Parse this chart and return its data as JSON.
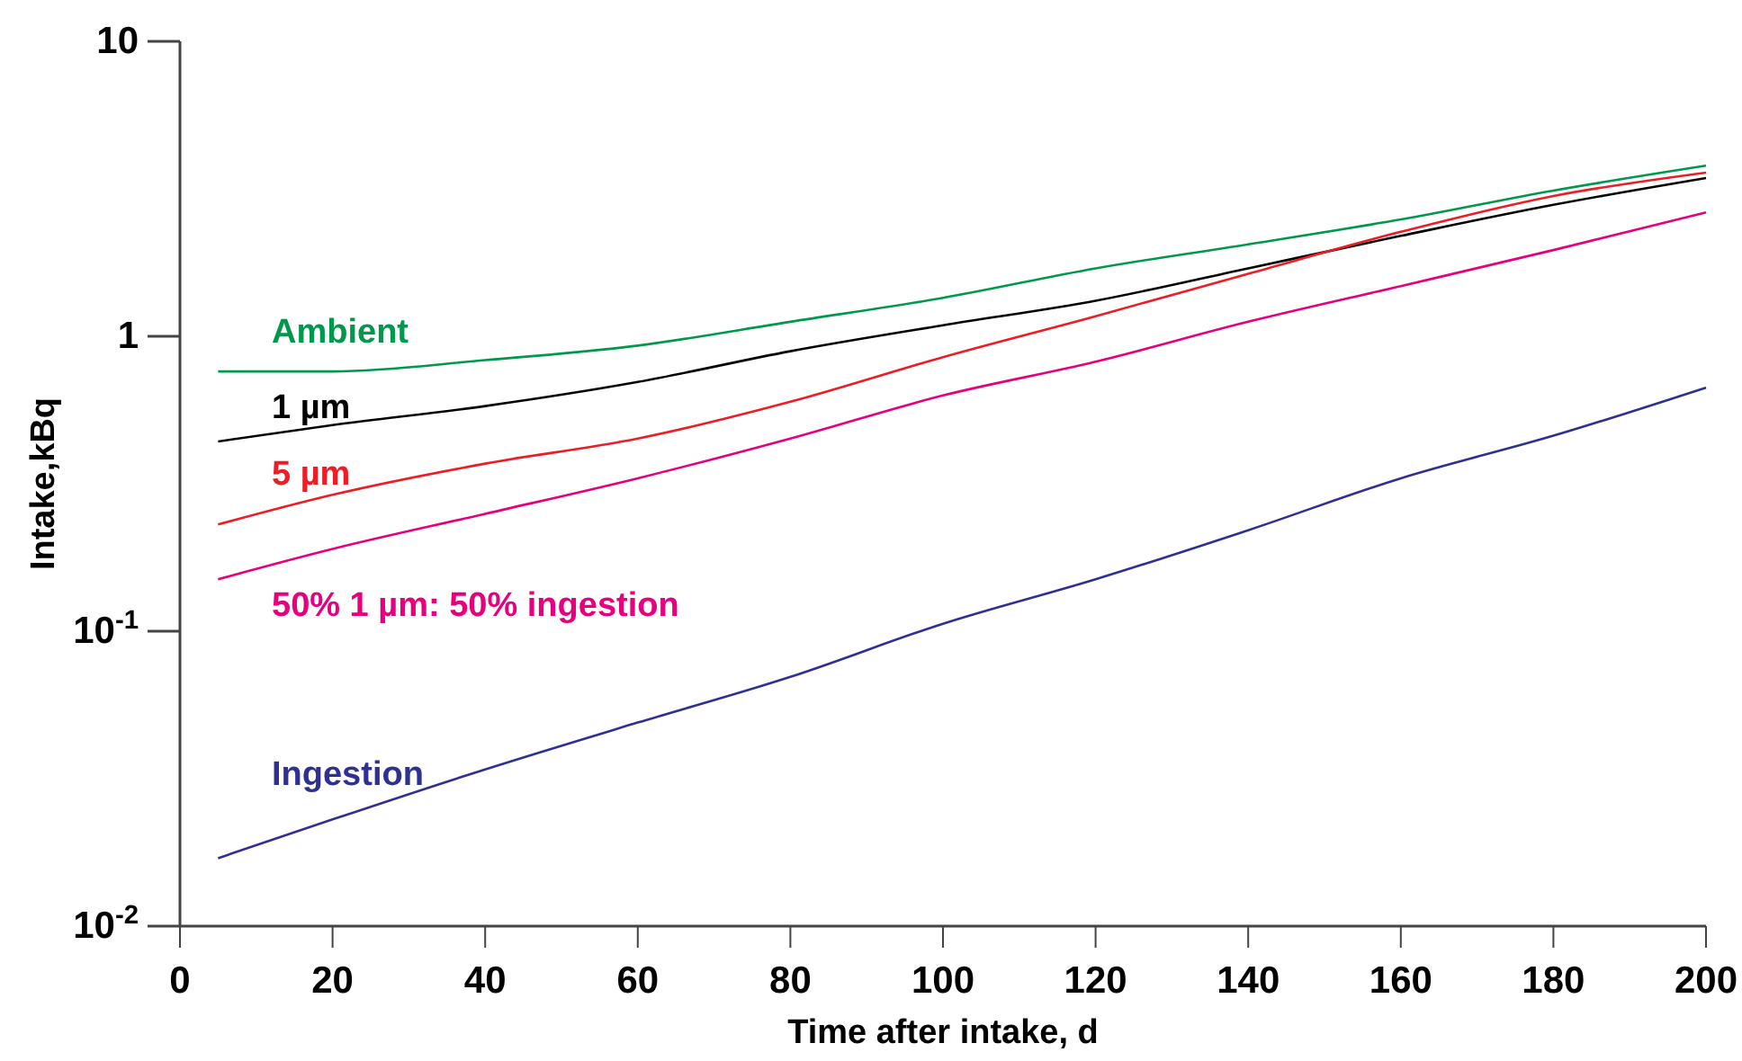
{
  "chart_data": {
    "type": "line",
    "xlabel": "Time after intake, d",
    "ylabel": "Intake,kBq",
    "log": "y",
    "grid": false,
    "legend": false,
    "marker": "none",
    "line_style": "solid",
    "x": [
      5,
      20,
      40,
      60,
      80,
      100,
      120,
      140,
      160,
      180,
      200
    ],
    "xlim": [
      0,
      200
    ],
    "xticks": [
      0,
      20,
      40,
      60,
      80,
      100,
      120,
      140,
      160,
      180,
      200
    ],
    "ylim": [
      0.01,
      10
    ],
    "yticks": [
      {
        "value": 0.01,
        "label": "10$^{-2}$"
      },
      {
        "value": 0.1,
        "label": "10$^{-1}$"
      },
      1,
      10
    ],
    "series": [
      {
        "name": "Ambient",
        "color": "#00994c",
        "values": [
          0.76,
          0.76,
          0.83,
          0.93,
          1.12,
          1.35,
          1.7,
          2.05,
          2.49,
          3.12,
          3.79
        ]
      },
      {
        "name": "1 µm",
        "color": "#000000",
        "values": [
          0.44,
          0.5,
          0.58,
          0.7,
          0.89,
          1.09,
          1.32,
          1.7,
          2.19,
          2.79,
          3.44
        ]
      },
      {
        "name": "5 µm",
        "color": "#ee1c24",
        "values": [
          0.23,
          0.29,
          0.37,
          0.45,
          0.6,
          0.85,
          1.17,
          1.63,
          2.26,
          2.99,
          3.59
        ]
      },
      {
        "name": "50% 1 µm: 50% ingestion",
        "color": "#e6007e",
        "values": [
          0.15,
          0.19,
          0.25,
          0.33,
          0.45,
          0.63,
          0.82,
          1.12,
          1.48,
          1.96,
          2.63
        ]
      },
      {
        "name": "Ingestion",
        "color": "#2e3192",
        "values": [
          0.017,
          0.023,
          0.034,
          0.049,
          0.07,
          0.106,
          0.15,
          0.22,
          0.33,
          0.46,
          0.67
        ]
      }
    ]
  }
}
